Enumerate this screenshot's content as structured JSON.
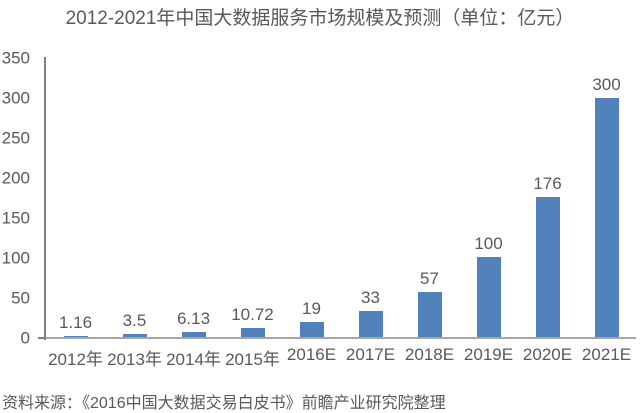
{
  "title": "2012-2021年中国大数据服务市场规模及预测（单位：亿元）",
  "source": "资料来源：《2016中国大数据交易白皮书》前瞻产业研究院整理",
  "colors": {
    "bar": "#5182bc",
    "y_axis_line": "#7f7f7f",
    "x_axis_line": "#a6a6a6",
    "text": "#595959",
    "background": "#ffffff"
  },
  "chart_data": {
    "type": "bar",
    "title": "2012-2021年中国大数据服务市场规模及预测（单位：亿元）",
    "unit": "亿元",
    "categories": [
      "2012年",
      "2013年",
      "2014年",
      "2015年",
      "2016E",
      "2017E",
      "2018E",
      "2019E",
      "2020E",
      "2021E"
    ],
    "values": [
      1.16,
      3.5,
      6.13,
      10.72,
      19,
      33,
      57,
      100,
      176,
      300
    ],
    "xlabel": "",
    "ylabel": "",
    "ylim": [
      0,
      350
    ],
    "yticks": [
      0,
      50,
      100,
      150,
      200,
      250,
      300,
      350
    ],
    "grid": false,
    "legend": false,
    "data_labels": true
  }
}
